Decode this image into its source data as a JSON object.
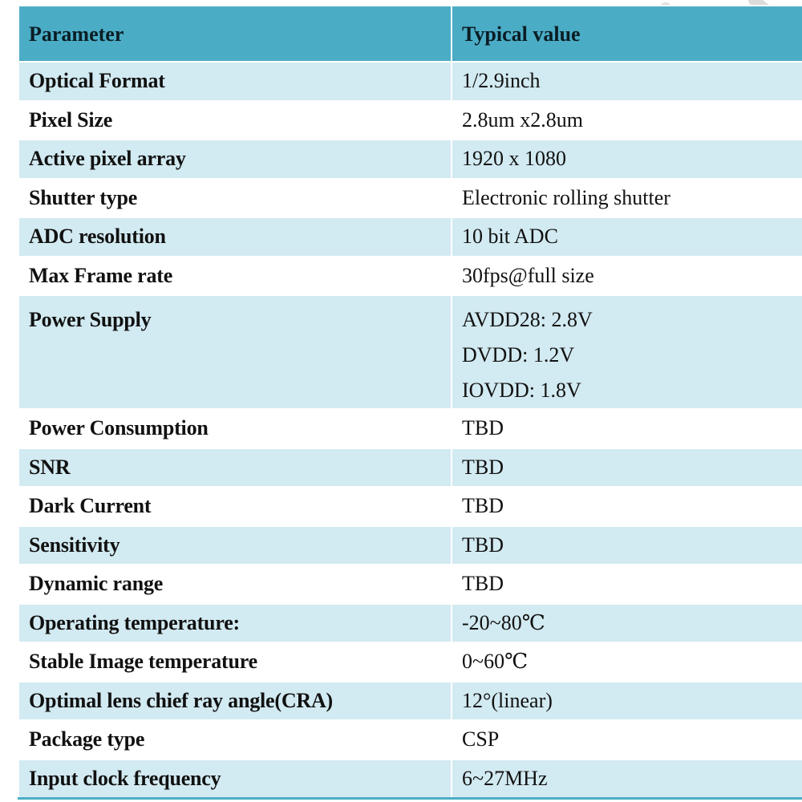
{
  "table": {
    "header": {
      "parameter": "Parameter",
      "value": "Typical value"
    },
    "rows": [
      {
        "parameter": "Optical Format",
        "value": "1/2.9inch"
      },
      {
        "parameter": "Pixel Size",
        "value": "2.8um x2.8um"
      },
      {
        "parameter": "Active pixel array",
        "value": "1920 x 1080"
      },
      {
        "parameter": "Shutter type",
        "value": "Electronic rolling shutter"
      },
      {
        "parameter": "ADC resolution",
        "value": "10 bit ADC"
      },
      {
        "parameter": "Max Frame rate",
        "value": "30fps@full size"
      },
      {
        "parameter": "Power Supply",
        "values": [
          "AVDD28: 2.8V",
          "DVDD: 1.2V",
          "IOVDD: 1.8V"
        ]
      },
      {
        "parameter": "Power Consumption",
        "value": "TBD"
      },
      {
        "parameter": "SNR",
        "value": "TBD"
      },
      {
        "parameter": "Dark Current",
        "value": "TBD"
      },
      {
        "parameter": "Sensitivity",
        "value": "TBD"
      },
      {
        "parameter": "Dynamic range",
        "value": "TBD"
      },
      {
        "parameter": "Operating temperature:",
        "value": "-20~80℃"
      },
      {
        "parameter": "Stable Image temperature",
        "value": "0~60℃"
      },
      {
        "parameter": "Optimal lens chief ray angle(CRA)",
        "value": "12°(linear)"
      },
      {
        "parameter": "Package type",
        "value": "CSP"
      },
      {
        "parameter": "Input clock frequency",
        "value": "6~27MHz"
      }
    ]
  },
  "colors": {
    "header_bg": "#4bacc6",
    "band_bg": "#d2eaf1",
    "watermark": "#d9d9d9"
  }
}
